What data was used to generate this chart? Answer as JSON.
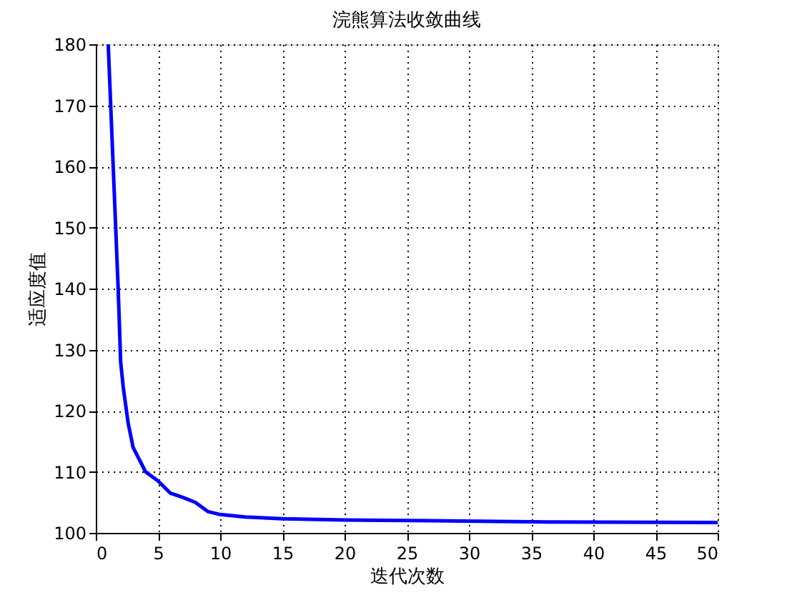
{
  "chart_data": {
    "type": "line",
    "title": "浣熊算法收敛曲线",
    "xlabel": "迭代次数",
    "ylabel": "适应度值",
    "x": [
      1,
      1.2,
      1.5,
      1.8,
      2,
      2.2,
      2.6,
      3,
      3.5,
      4,
      5,
      6,
      7,
      8,
      9,
      10,
      12,
      15,
      20,
      27,
      35,
      50
    ],
    "series": [
      {
        "color": "#0000ff",
        "values": [
          180,
          170,
          155,
          140,
          128,
          124,
          118,
          114,
          112,
          110,
          108.5,
          106.5,
          105.8,
          105,
          103.5,
          103,
          102.6,
          102.3,
          102.1,
          102,
          101.8,
          101.7
        ]
      }
    ],
    "xlim": [
      0,
      50
    ],
    "xticks": [
      0,
      5,
      10,
      15,
      20,
      25,
      30,
      35,
      40,
      45,
      50
    ],
    "ylim": [
      100,
      180
    ],
    "yticks": [
      100,
      110,
      120,
      130,
      140,
      150,
      160,
      170,
      180
    ],
    "grid": true,
    "line_style": "solid",
    "marker": "none"
  }
}
